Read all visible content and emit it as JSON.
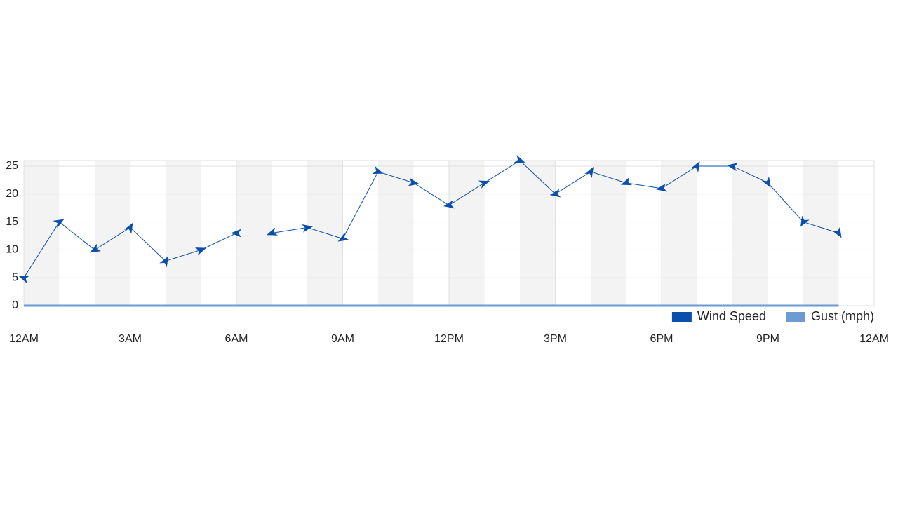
{
  "chart_data": {
    "type": "line",
    "x": [
      0,
      1,
      2,
      3,
      4,
      5,
      6,
      7,
      8,
      9,
      10,
      11,
      12,
      13,
      14,
      15,
      16,
      17,
      18,
      19,
      20,
      21,
      22,
      23
    ],
    "series": [
      {
        "name": "Wind Speed",
        "color": "#0b4fad",
        "values": [
          5,
          15,
          10,
          14,
          8,
          10,
          13,
          13,
          14,
          12,
          24,
          22,
          18,
          22,
          26,
          20,
          24,
          22,
          21,
          25,
          25,
          22,
          15,
          13
        ],
        "directions": [
          200,
          -30,
          150,
          -60,
          -60,
          -20,
          180,
          160,
          -10,
          150,
          20,
          10,
          170,
          -20,
          20,
          170,
          -60,
          160,
          170,
          -60,
          190,
          60,
          120,
          60
        ]
      },
      {
        "name": "Gust (mph)",
        "color": "#6b9bd2",
        "values": [
          0,
          0,
          0,
          0,
          0,
          0,
          0,
          0,
          0,
          0,
          0,
          0,
          0,
          0,
          0,
          0,
          0,
          0,
          0,
          0,
          0,
          0,
          0,
          0
        ]
      }
    ],
    "xlim": [
      0,
      24
    ],
    "xticks": [
      {
        "value": 0,
        "label": "12AM"
      },
      {
        "value": 3,
        "label": "3AM"
      },
      {
        "value": 6,
        "label": "6AM"
      },
      {
        "value": 9,
        "label": "9AM"
      },
      {
        "value": 12,
        "label": "12PM"
      },
      {
        "value": 15,
        "label": "3PM"
      },
      {
        "value": 18,
        "label": "6PM"
      },
      {
        "value": 21,
        "label": "9PM"
      },
      {
        "value": 24,
        "label": "12AM"
      }
    ],
    "ylim": [
      0,
      26
    ],
    "yticks": [
      0,
      5,
      10,
      15,
      20,
      25
    ],
    "grid": true,
    "legend": "bottom-right"
  }
}
